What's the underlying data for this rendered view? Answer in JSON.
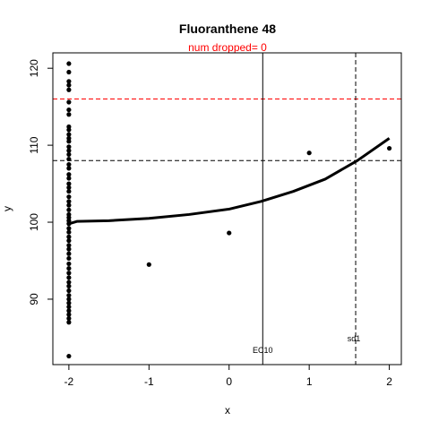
{
  "chart_data": {
    "type": "scatter",
    "title": "Fluoranthene 48",
    "subtitle": "num dropped= 0",
    "xlabel": "x",
    "ylabel": "y",
    "xlim": [
      -2.2,
      2.15
    ],
    "ylim": [
      81.5,
      122
    ],
    "x_ticks": [
      -2,
      -1,
      0,
      1,
      2
    ],
    "y_ticks": [
      90,
      100,
      110,
      120
    ],
    "grid": false,
    "points": [
      {
        "x": -2,
        "y": 120.6
      },
      {
        "x": -2,
        "y": 119.5
      },
      {
        "x": -2,
        "y": 118.3
      },
      {
        "x": -2,
        "y": 117.8
      },
      {
        "x": -2,
        "y": 117.2
      },
      {
        "x": -2,
        "y": 115.6
      },
      {
        "x": -2,
        "y": 114.6
      },
      {
        "x": -2,
        "y": 114.0
      },
      {
        "x": -2,
        "y": 112.4
      },
      {
        "x": -2,
        "y": 112.0
      },
      {
        "x": -2,
        "y": 111.4
      },
      {
        "x": -2,
        "y": 110.9
      },
      {
        "x": -2,
        "y": 110.5
      },
      {
        "x": -2,
        "y": 109.8
      },
      {
        "x": -2,
        "y": 109.3
      },
      {
        "x": -2,
        "y": 108.8
      },
      {
        "x": -2,
        "y": 108.2
      },
      {
        "x": -2,
        "y": 107.5
      },
      {
        "x": -2,
        "y": 107.0
      },
      {
        "x": -2,
        "y": 106.2
      },
      {
        "x": -2,
        "y": 105.7
      },
      {
        "x": -2,
        "y": 105.0
      },
      {
        "x": -2,
        "y": 104.5
      },
      {
        "x": -2,
        "y": 104.0
      },
      {
        "x": -2,
        "y": 103.3
      },
      {
        "x": -2,
        "y": 102.7
      },
      {
        "x": -2,
        "y": 102.2
      },
      {
        "x": -2,
        "y": 101.6
      },
      {
        "x": -2,
        "y": 101.0
      },
      {
        "x": -2,
        "y": 100.6
      },
      {
        "x": -2,
        "y": 100.2
      },
      {
        "x": -2,
        "y": 99.8
      },
      {
        "x": -2,
        "y": 99.2
      },
      {
        "x": -2,
        "y": 98.7
      },
      {
        "x": -2,
        "y": 98.1
      },
      {
        "x": -2,
        "y": 97.6
      },
      {
        "x": -2,
        "y": 97.0
      },
      {
        "x": -2,
        "y": 96.5
      },
      {
        "x": -2,
        "y": 95.9
      },
      {
        "x": -2,
        "y": 95.3
      },
      {
        "x": -2,
        "y": 94.6
      },
      {
        "x": -2,
        "y": 94.0
      },
      {
        "x": -2,
        "y": 93.4
      },
      {
        "x": -2,
        "y": 92.8
      },
      {
        "x": -2,
        "y": 92.2
      },
      {
        "x": -2,
        "y": 91.7
      },
      {
        "x": -2,
        "y": 91.1
      },
      {
        "x": -2,
        "y": 90.5
      },
      {
        "x": -2,
        "y": 90.0
      },
      {
        "x": -2,
        "y": 89.5
      },
      {
        "x": -2,
        "y": 89.0
      },
      {
        "x": -2,
        "y": 88.5
      },
      {
        "x": -2,
        "y": 88.0
      },
      {
        "x": -2,
        "y": 87.5
      },
      {
        "x": -2,
        "y": 87.0
      },
      {
        "x": -2,
        "y": 82.6
      },
      {
        "x": -1,
        "y": 94.5
      },
      {
        "x": 0,
        "y": 98.6
      },
      {
        "x": 1,
        "y": 109.0
      },
      {
        "x": 2,
        "y": 109.6
      }
    ],
    "curve": {
      "x": [
        -2,
        -1.9,
        -1.5,
        -1.0,
        -0.5,
        0,
        0.4,
        0.8,
        1.2,
        1.6,
        2.0
      ],
      "y": [
        99.8,
        100.1,
        100.2,
        100.5,
        101.0,
        101.7,
        102.7,
        104.0,
        105.6,
        108.0,
        110.9
      ]
    },
    "reference_lines": {
      "h_red_dashed": 116,
      "h_black_dashed": 108,
      "v_ec10_solid": 0.42,
      "v_sd1_dashed": 1.58
    },
    "annotations": {
      "ec10_label": "EC10",
      "sd1_label": "sd1"
    },
    "colors": {
      "points": "#000000",
      "curve": "#000000",
      "subtitle": "#ff0000",
      "red_line": "#ff0000",
      "black_line": "#000000"
    }
  }
}
